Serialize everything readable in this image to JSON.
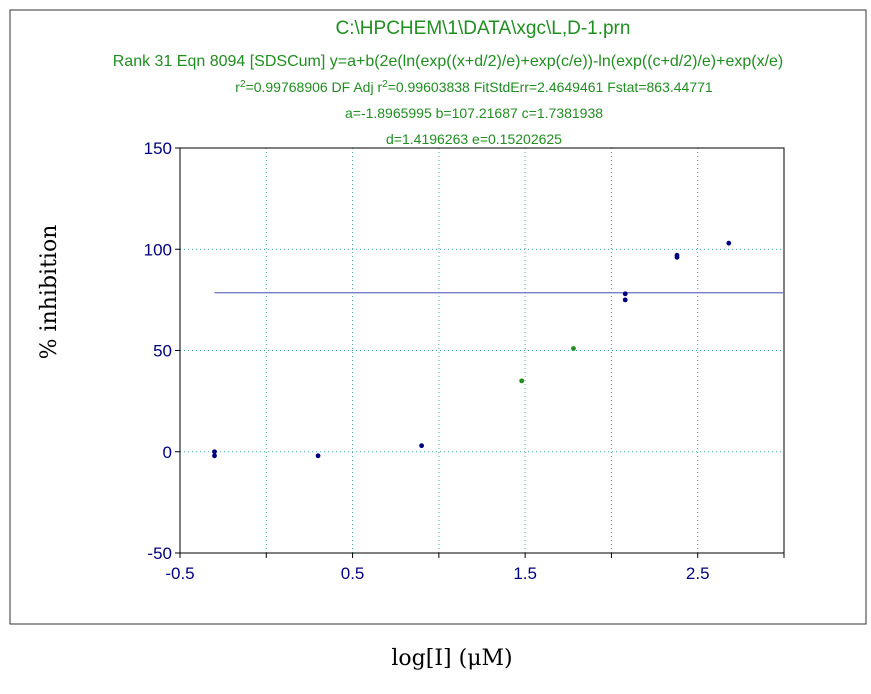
{
  "chart_data": {
    "type": "scatter",
    "title": "C:\\HPCHEM\\1\\DATA\\xgc\\L,D-1.prn",
    "subtitle_lines": [
      "Rank 31  Eqn 8094  [SDSCum] y=a+b(2e(ln(exp((x+d/2)/e)+exp(c/e))-ln(exp((c+d/2)/e)+exp(x/e)",
      "=0.99768906  DF Adj r",
      "=0.99603838  FitStdErr=2.4649461  Fstat=863.44771",
      "a=-1.8965995 b=107.21687 c=1.7381938",
      "d=1.4196263 e=0.15202625"
    ],
    "r_symbol": "r",
    "superscript": "2",
    "xlabel": "log[I] (μM)",
    "ylabel": "% inhibition",
    "xlim": [
      -0.5,
      3.0
    ],
    "ylim": [
      -50,
      150
    ],
    "x_ticks": [
      -0.5,
      0.5,
      1.5,
      2.5
    ],
    "x_tick_labels": [
      "-0.5",
      "0.5",
      "1.5",
      "2.5"
    ],
    "y_ticks": [
      -50,
      0,
      50,
      100,
      150
    ],
    "y_tick_labels": [
      "-50",
      "0",
      "50",
      "100",
      "150"
    ],
    "grid": true,
    "params": {
      "a": -1.8965995,
      "b": 107.21687,
      "c": 1.7381938,
      "d": 1.4196263,
      "e": 0.15202625
    },
    "points": [
      {
        "x": -0.3,
        "y": 0,
        "color": "#000080"
      },
      {
        "x": -0.3,
        "y": -2,
        "color": "#000080"
      },
      {
        "x": 0.3,
        "y": -2,
        "color": "#000080"
      },
      {
        "x": 0.9,
        "y": 3,
        "color": "#000080"
      },
      {
        "x": 1.48,
        "y": 35,
        "color": "#1f8f1f"
      },
      {
        "x": 1.78,
        "y": 51,
        "color": "#1f8f1f"
      },
      {
        "x": 2.08,
        "y": 78,
        "color": "#000080"
      },
      {
        "x": 2.08,
        "y": 75,
        "color": "#000080"
      },
      {
        "x": 2.38,
        "y": 97,
        "color": "#000080"
      },
      {
        "x": 2.38,
        "y": 96,
        "color": "#000080"
      },
      {
        "x": 2.68,
        "y": 103,
        "color": "#000080"
      }
    ],
    "colors": {
      "title": "#1f8f1f",
      "ticks": "#000080",
      "curve": "#6a6fc0",
      "grid": "#3aa8a8"
    }
  }
}
